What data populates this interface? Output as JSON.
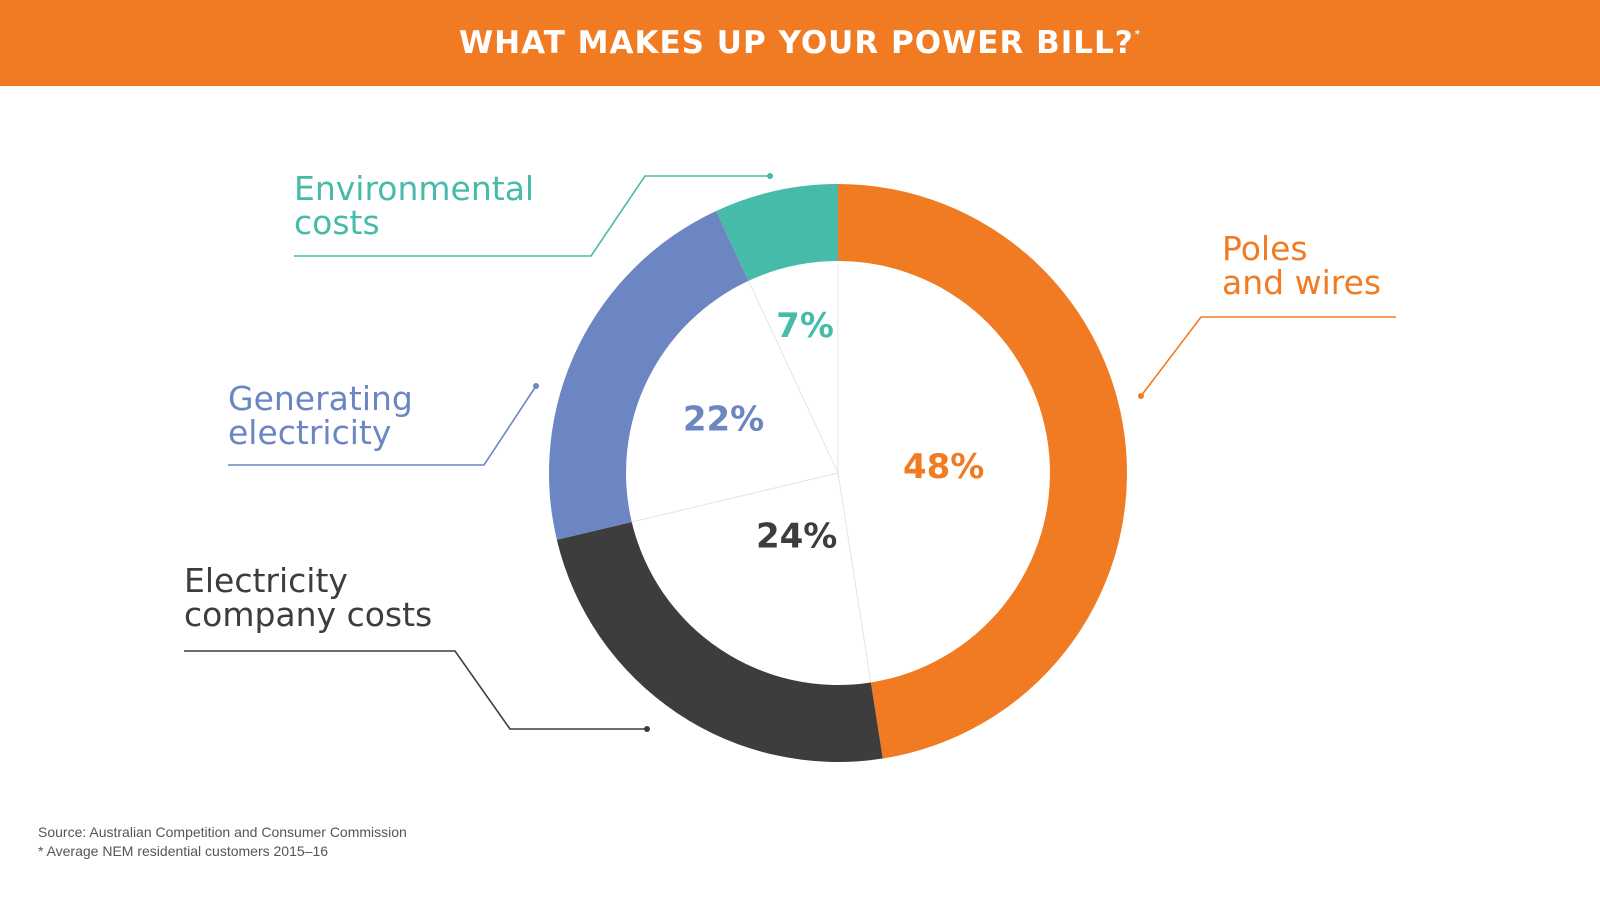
{
  "title": "WHAT MAKES UP YOUR POWER BILL?",
  "title_mark": "*",
  "chart_data": {
    "type": "pie",
    "variant": "donut",
    "slices": [
      {
        "label_lines": [
          "Poles",
          "and wires"
        ],
        "value": 48,
        "value_label": "48%",
        "color": "#f07b22"
      },
      {
        "label_lines": [
          "Electricity",
          "company costs"
        ],
        "value": 24,
        "value_label": "24%",
        "color": "#3d3d3d"
      },
      {
        "label_lines": [
          "Generating",
          "electricity"
        ],
        "value": 22,
        "value_label": "22%",
        "color": "#6b86c3"
      },
      {
        "label_lines": [
          "Environmental",
          "costs"
        ],
        "value": 7,
        "value_label": "7%",
        "color": "#47bba9"
      }
    ]
  },
  "footnotes": {
    "source": "Source: Australian Competition and Consumer Commission",
    "note": "* Average NEM residential customers 2015–16"
  }
}
